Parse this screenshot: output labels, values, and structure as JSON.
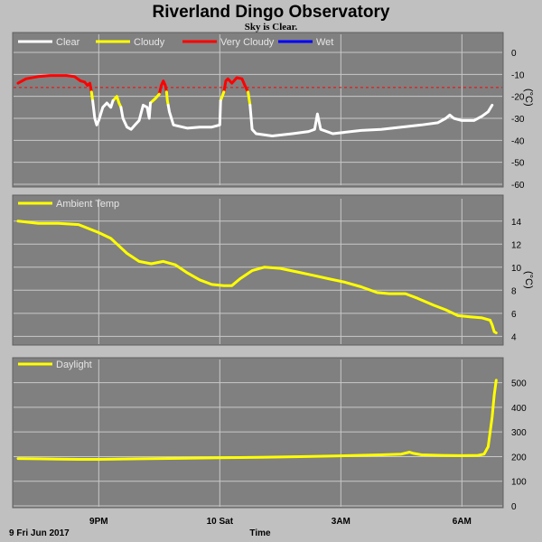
{
  "header": {
    "title": "Riverland Dingo Observatory",
    "subtitle": "Sky is Clear."
  },
  "colors": {
    "page_background": "#c0c0c0",
    "panel_background": "#808080",
    "grid": "#c8c8c8",
    "clear": "#ffffff",
    "cloudy": "#ffff00",
    "very_cloudy": "#ff0000",
    "wet": "#0000ff",
    "threshold": "#ff0000"
  },
  "x_axis": {
    "label": "Time",
    "start_label": "9 Fri Jun 2017",
    "range_hours": [
      0,
      12
    ],
    "ticks": [
      {
        "hour": 2,
        "label": "9PM"
      },
      {
        "hour": 5,
        "label": "10 Sat"
      },
      {
        "hour": 8,
        "label": "3AM"
      },
      {
        "hour": 11,
        "label": "6AM"
      }
    ],
    "grid_hours": [
      2,
      5,
      8,
      11
    ]
  },
  "chart_data": [
    {
      "type": "line",
      "id": "sky",
      "ylim": [
        -60,
        0
      ],
      "yticks": [
        0,
        -10,
        -20,
        -30,
        -40,
        -50,
        -60
      ],
      "unit_label": "(°C)",
      "grid": true,
      "legend_position": "top-left",
      "threshold": -16,
      "legend": [
        {
          "label": "Clear",
          "color": "#ffffff"
        },
        {
          "label": "Cloudy",
          "color": "#ffff00"
        },
        {
          "label": "Very Cloudy",
          "color": "#ff0000"
        },
        {
          "label": "Wet",
          "color": "#0000ff"
        }
      ],
      "series": [
        {
          "name": "Very Cloudy",
          "color": "#ff0000",
          "segments": [
            [
              [
                0.0,
                -14
              ],
              [
                0.2,
                -12
              ],
              [
                0.5,
                -11
              ],
              [
                0.8,
                -10.5
              ],
              [
                1.2,
                -10.5
              ],
              [
                1.4,
                -11
              ],
              [
                1.55,
                -13
              ],
              [
                1.65,
                -13.5
              ],
              [
                1.72,
                -15
              ],
              [
                1.78,
                -14
              ],
              [
                1.82,
                -18
              ]
            ],
            [
              [
                3.5,
                -19
              ],
              [
                3.55,
                -15
              ],
              [
                3.6,
                -13
              ],
              [
                3.65,
                -15
              ],
              [
                3.68,
                -18
              ]
            ],
            [
              [
                5.1,
                -18
              ],
              [
                5.15,
                -13
              ],
              [
                5.2,
                -12
              ],
              [
                5.3,
                -14
              ],
              [
                5.42,
                -11.5
              ],
              [
                5.55,
                -12
              ],
              [
                5.62,
                -15
              ],
              [
                5.7,
                -18
              ]
            ]
          ]
        },
        {
          "name": "Cloudy",
          "color": "#ffff00",
          "segments": [
            [
              [
                1.82,
                -18
              ],
              [
                1.85,
                -22
              ]
            ],
            [
              [
                2.35,
                -22
              ],
              [
                2.45,
                -20
              ],
              [
                2.5,
                -23
              ],
              [
                2.55,
                -25
              ]
            ],
            [
              [
                3.28,
                -23
              ],
              [
                3.4,
                -21
              ],
              [
                3.5,
                -19
              ]
            ],
            [
              [
                3.68,
                -18
              ],
              [
                3.7,
                -22
              ],
              [
                3.72,
                -24
              ]
            ],
            [
              [
                5.02,
                -22
              ],
              [
                5.1,
                -18
              ]
            ],
            [
              [
                5.7,
                -18
              ],
              [
                5.75,
                -24
              ]
            ]
          ]
        },
        {
          "name": "Clear",
          "color": "#ffffff",
          "segments": [
            [
              [
                1.85,
                -22
              ],
              [
                1.9,
                -30
              ],
              [
                1.95,
                -33
              ],
              [
                2.0,
                -31
              ],
              [
                2.1,
                -25
              ],
              [
                2.2,
                -23
              ],
              [
                2.3,
                -25
              ],
              [
                2.35,
                -22
              ]
            ],
            [
              [
                2.55,
                -25
              ],
              [
                2.6,
                -30
              ],
              [
                2.7,
                -34
              ],
              [
                2.8,
                -35
              ],
              [
                2.9,
                -33
              ],
              [
                3.0,
                -31
              ],
              [
                3.1,
                -24
              ],
              [
                3.2,
                -25
              ],
              [
                3.25,
                -30
              ],
              [
                3.28,
                -23
              ]
            ],
            [
              [
                3.72,
                -24
              ],
              [
                3.75,
                -27
              ],
              [
                3.85,
                -33
              ],
              [
                4.2,
                -34.5
              ],
              [
                4.5,
                -34
              ],
              [
                4.8,
                -34
              ],
              [
                5.0,
                -33
              ],
              [
                5.02,
                -22
              ]
            ],
            [
              [
                5.75,
                -24
              ],
              [
                5.8,
                -35
              ],
              [
                5.9,
                -37
              ],
              [
                6.3,
                -38
              ],
              [
                6.8,
                -37
              ],
              [
                7.2,
                -36
              ],
              [
                7.35,
                -35
              ],
              [
                7.42,
                -28
              ],
              [
                7.5,
                -35
              ],
              [
                7.8,
                -37
              ],
              [
                8.5,
                -35.5
              ],
              [
                9.0,
                -35
              ],
              [
                9.5,
                -34
              ],
              [
                10.0,
                -33
              ],
              [
                10.4,
                -32
              ],
              [
                10.6,
                -30
              ],
              [
                10.7,
                -28.5
              ],
              [
                10.8,
                -30
              ],
              [
                11.0,
                -31
              ],
              [
                11.3,
                -31
              ],
              [
                11.5,
                -29
              ],
              [
                11.65,
                -27
              ],
              [
                11.75,
                -24
              ]
            ]
          ]
        }
      ]
    },
    {
      "type": "line",
      "id": "ambient",
      "ylim": [
        3.4,
        15
      ],
      "yticks": [
        14,
        12,
        10,
        8,
        6,
        4
      ],
      "unit_label": "(°C)",
      "grid": true,
      "legend_position": "top-left",
      "legend": [
        {
          "label": "Ambient Temp",
          "color": "#ffff00"
        }
      ],
      "series": [
        {
          "name": "Ambient Temp",
          "color": "#ffff00",
          "segments": [
            [
              [
                0.0,
                14.0
              ],
              [
                0.5,
                13.8
              ],
              [
                1.0,
                13.8
              ],
              [
                1.5,
                13.7
              ],
              [
                2.0,
                13.0
              ],
              [
                2.3,
                12.5
              ],
              [
                2.7,
                11.2
              ],
              [
                3.0,
                10.5
              ],
              [
                3.3,
                10.3
              ],
              [
                3.6,
                10.5
              ],
              [
                3.9,
                10.2
              ],
              [
                4.2,
                9.5
              ],
              [
                4.5,
                8.9
              ],
              [
                4.8,
                8.5
              ],
              [
                5.1,
                8.4
              ],
              [
                5.3,
                8.4
              ],
              [
                5.5,
                9.0
              ],
              [
                5.8,
                9.7
              ],
              [
                6.1,
                10.0
              ],
              [
                6.5,
                9.9
              ],
              [
                6.9,
                9.6
              ],
              [
                7.3,
                9.3
              ],
              [
                7.7,
                9.0
              ],
              [
                8.1,
                8.7
              ],
              [
                8.5,
                8.3
              ],
              [
                8.9,
                7.8
              ],
              [
                9.2,
                7.7
              ],
              [
                9.6,
                7.7
              ],
              [
                9.9,
                7.3
              ],
              [
                10.3,
                6.7
              ],
              [
                10.6,
                6.3
              ],
              [
                10.9,
                5.8
              ],
              [
                11.2,
                5.7
              ],
              [
                11.5,
                5.6
              ],
              [
                11.7,
                5.4
              ],
              [
                11.75,
                5.0
              ],
              [
                11.8,
                4.4
              ],
              [
                11.85,
                4.3
              ]
            ]
          ]
        }
      ]
    },
    {
      "type": "line",
      "id": "daylight",
      "ylim": [
        0,
        550
      ],
      "yticks": [
        500,
        400,
        300,
        200,
        100,
        0
      ],
      "grid": true,
      "legend_position": "top-left",
      "legend": [
        {
          "label": "Daylight",
          "color": "#ffff00"
        }
      ],
      "series": [
        {
          "name": "Daylight",
          "color": "#ffff00",
          "segments": [
            [
              [
                0.0,
                192
              ],
              [
                0.5,
                191
              ],
              [
                1.0,
                190
              ],
              [
                1.5,
                189
              ],
              [
                2.0,
                189
              ],
              [
                3.0,
                191
              ],
              [
                4.0,
                193
              ],
              [
                5.0,
                195
              ],
              [
                6.0,
                197
              ],
              [
                7.0,
                200
              ],
              [
                8.0,
                203
              ],
              [
                9.0,
                207
              ],
              [
                9.5,
                210
              ],
              [
                9.7,
                218
              ],
              [
                9.8,
                213
              ],
              [
                10.0,
                207
              ],
              [
                10.5,
                205
              ],
              [
                11.0,
                204
              ],
              [
                11.4,
                205
              ],
              [
                11.55,
                210
              ],
              [
                11.65,
                240
              ],
              [
                11.75,
                360
              ],
              [
                11.8,
                450
              ],
              [
                11.85,
                510
              ]
            ]
          ]
        }
      ]
    }
  ]
}
